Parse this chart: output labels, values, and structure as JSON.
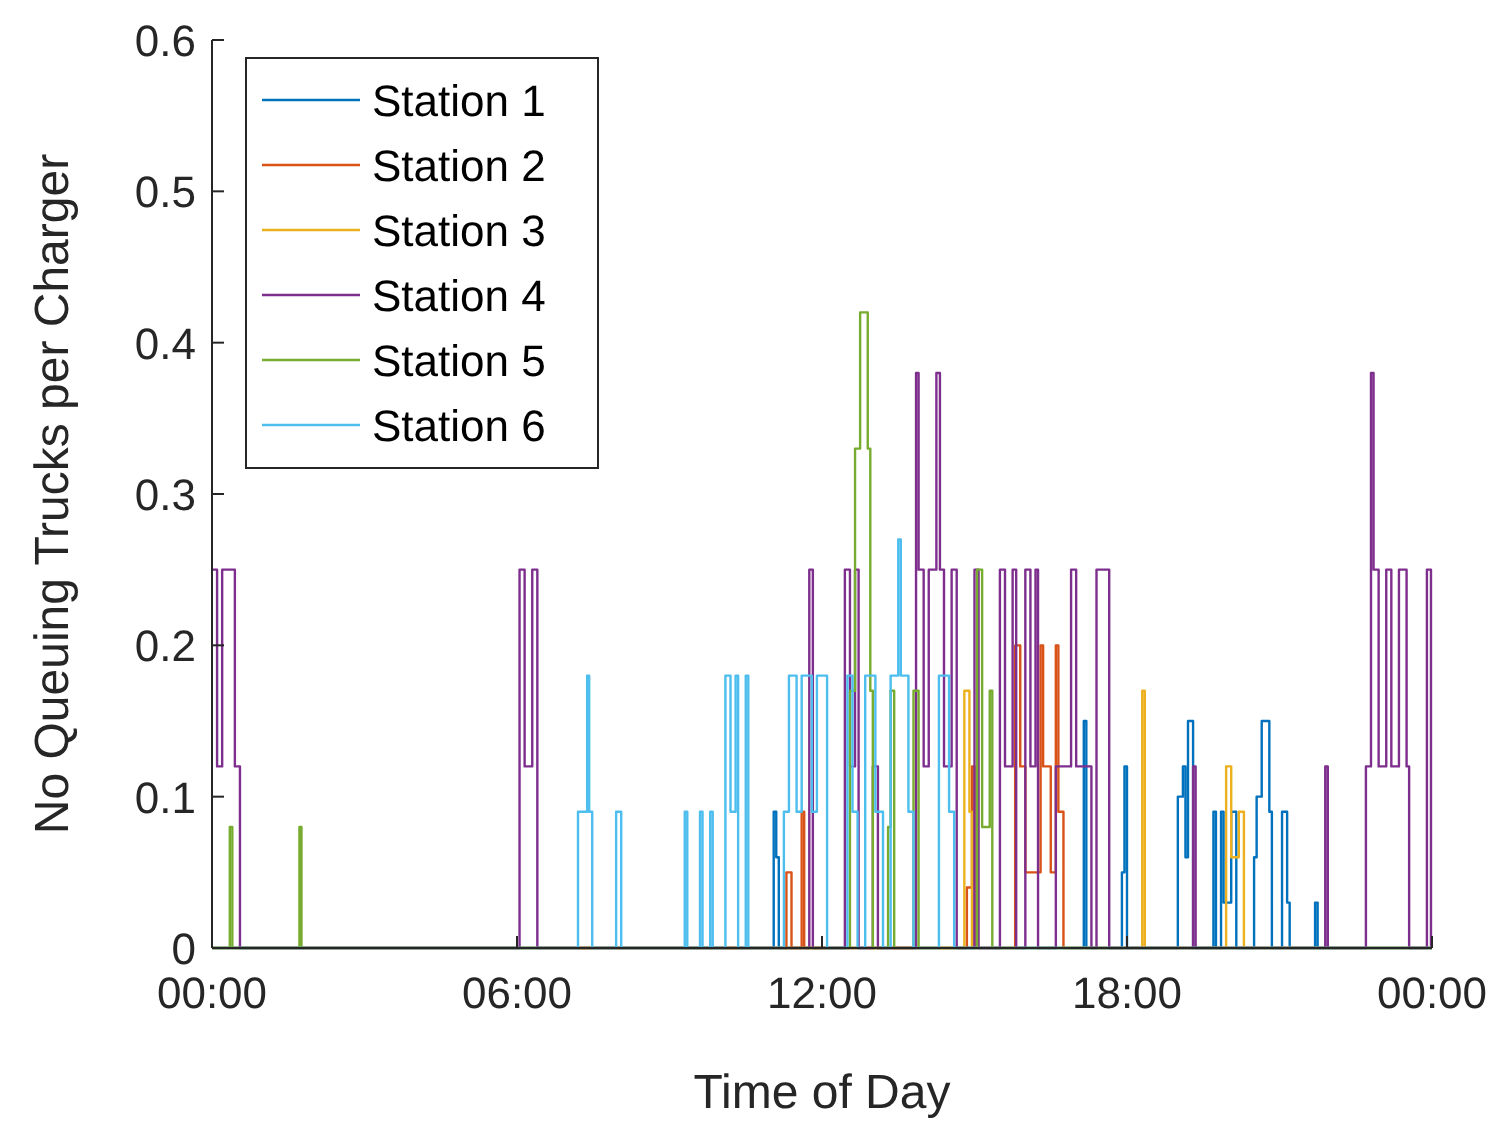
{
  "chart_data": {
    "type": "step",
    "xlabel": "Time of Day",
    "ylabel": "No Queuing Trucks per Charger",
    "xlim": [
      0,
      24
    ],
    "ylim": [
      0,
      0.6
    ],
    "xticks": [
      {
        "value": 0,
        "label": "00:00"
      },
      {
        "value": 6,
        "label": "06:00"
      },
      {
        "value": 12,
        "label": "12:00"
      },
      {
        "value": 18,
        "label": "18:00"
      },
      {
        "value": 24,
        "label": "00:00"
      }
    ],
    "yticks": [
      0,
      0.1,
      0.2,
      0.3,
      0.4,
      0.5,
      0.6
    ],
    "legend": "top left",
    "grid": false,
    "line_style": "solid",
    "marker": "none",
    "series": [
      {
        "name": "Station 1",
        "color": "#0072bd",
        "x": [
          0,
          11.05,
          11.1,
          11.15,
          17.15,
          17.2,
          17.9,
          17.95,
          18.0,
          19.0,
          19.1,
          19.15,
          19.2,
          19.3,
          19.7,
          19.75,
          19.85,
          19.9,
          20.05,
          20.15,
          20.5,
          20.55,
          20.65,
          20.8,
          20.85,
          21.05,
          21.15,
          21.2,
          21.7,
          21.75,
          24
        ],
        "values": [
          0,
          0.09,
          0.06,
          0,
          0.15,
          0,
          0.05,
          0.12,
          0,
          0.1,
          0.12,
          0.06,
          0.15,
          0,
          0.09,
          0,
          0.09,
          0.03,
          0.09,
          0,
          0.06,
          0.1,
          0.15,
          0.09,
          0,
          0.09,
          0.03,
          0,
          0.03,
          0,
          0
        ]
      },
      {
        "name": "Station 2",
        "color": "#d95319",
        "x": [
          0,
          11.3,
          11.4,
          11.6,
          11.65,
          14.85,
          14.95,
          15.0,
          15.8,
          15.9,
          16.0,
          16.3,
          16.35,
          16.5,
          16.6,
          16.65,
          16.75,
          24
        ],
        "values": [
          0,
          0.05,
          0,
          0.09,
          0,
          0.04,
          0.12,
          0,
          0.2,
          0.12,
          0.05,
          0.2,
          0.12,
          0.05,
          0.2,
          0.09,
          0,
          0
        ]
      },
      {
        "name": "Station 3",
        "color": "#edb120",
        "x": [
          0,
          14.8,
          14.9,
          14.95,
          18.3,
          18.35,
          19.95,
          20.05,
          20.2,
          20.3,
          24
        ],
        "values": [
          0,
          0.17,
          0.09,
          0,
          0.17,
          0,
          0.12,
          0.06,
          0.09,
          0,
          0
        ]
      },
      {
        "name": "Station 4",
        "color": "#7e2f8e",
        "x": [
          0,
          0.1,
          0.2,
          0.45,
          0.55,
          6.05,
          6.15,
          6.3,
          6.4,
          11.75,
          11.82,
          12.45,
          12.55,
          12.65,
          12.72,
          13.0,
          13.1,
          13.85,
          13.9,
          14.0,
          14.1,
          14.25,
          14.32,
          14.4,
          14.55,
          14.65,
          15.0,
          15.08,
          15.5,
          15.6,
          15.75,
          15.82,
          16.0,
          16.1,
          16.2,
          16.25,
          16.6,
          16.9,
          17.0,
          17.3,
          17.4,
          17.65,
          19.3,
          19.35,
          21.9,
          21.95,
          22.7,
          22.8,
          22.85,
          22.95,
          23.1,
          23.2,
          23.35,
          23.5,
          23.55,
          23.9,
          23.98
        ],
        "values": [
          0.25,
          0.12,
          0.25,
          0.12,
          0,
          0.25,
          0.12,
          0.25,
          0,
          0.25,
          0,
          0.25,
          0.12,
          0.25,
          0,
          0.12,
          0,
          0.38,
          0.25,
          0.12,
          0.25,
          0.38,
          0.25,
          0.12,
          0.25,
          0,
          0.25,
          0,
          0.25,
          0.12,
          0.25,
          0,
          0.25,
          0.12,
          0.25,
          0,
          0.12,
          0.25,
          0.12,
          0,
          0.25,
          0,
          0.12,
          0,
          0.12,
          0,
          0.12,
          0.38,
          0.25,
          0.12,
          0.25,
          0.12,
          0.25,
          0.12,
          0,
          0.25,
          0
        ]
      },
      {
        "name": "Station 5",
        "color": "#77ac30",
        "x": [
          0,
          0.35,
          0.4,
          1.72,
          1.76,
          12.55,
          12.65,
          12.75,
          12.9,
          12.95,
          13.0,
          13.3,
          13.35,
          13.42,
          13.8,
          13.9,
          15.05,
          15.15,
          15.3,
          15.35,
          24
        ],
        "values": [
          0,
          0.08,
          0,
          0.08,
          0,
          0.17,
          0.33,
          0.42,
          0.33,
          0.17,
          0,
          0.08,
          0.17,
          0,
          0.17,
          0,
          0.25,
          0.08,
          0.17,
          0,
          0
        ]
      },
      {
        "name": "Station 6",
        "color": "#4dbeee",
        "x": [
          0,
          7.2,
          7.38,
          7.42,
          7.48,
          7.95,
          8.05,
          9.3,
          9.35,
          9.6,
          9.65,
          9.8,
          9.85,
          10.1,
          10.2,
          10.3,
          10.35,
          10.5,
          10.55,
          11.25,
          11.35,
          11.5,
          11.6,
          11.8,
          11.9,
          12.1,
          12.5,
          12.6,
          12.7,
          12.85,
          13.05,
          13.2,
          13.35,
          13.5,
          13.55,
          13.7,
          13.8,
          14.3,
          14.5,
          14.6,
          24
        ],
        "values": [
          0,
          0.09,
          0.18,
          0.09,
          0,
          0.09,
          0,
          0.09,
          0,
          0.09,
          0,
          0.09,
          0,
          0.18,
          0.09,
          0.18,
          0,
          0.18,
          0,
          0.09,
          0.18,
          0.09,
          0.18,
          0.09,
          0.18,
          0,
          0.18,
          0.09,
          0,
          0.18,
          0.09,
          0,
          0.18,
          0.27,
          0.18,
          0.09,
          0,
          0.18,
          0.09,
          0,
          0
        ]
      }
    ]
  }
}
